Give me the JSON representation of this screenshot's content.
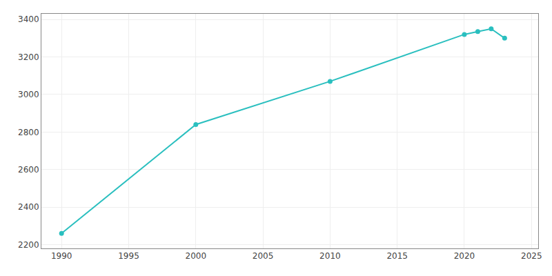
{
  "chart_data": {
    "type": "line",
    "x": [
      1990,
      2000,
      2010,
      2020,
      2021,
      2022,
      2023
    ],
    "values": [
      2260,
      2840,
      3070,
      3320,
      3335,
      3350,
      3300
    ],
    "color": "#2abfbf",
    "marker": "circle",
    "xlim": [
      1988.5,
      2025.5
    ],
    "ylim": [
      2180,
      3430
    ],
    "xticks": [
      1990,
      1995,
      2000,
      2005,
      2010,
      2015,
      2020,
      2025
    ],
    "yticks": [
      2200,
      2400,
      2600,
      2800,
      3000,
      3200,
      3400
    ],
    "grid": true
  }
}
